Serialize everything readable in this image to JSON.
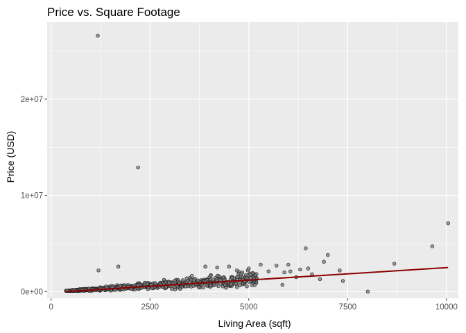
{
  "chart_data": {
    "type": "scatter",
    "title": "Price vs. Square Footage",
    "xlabel": "Living Area (sqft)",
    "ylabel": "Price (USD)",
    "xlim": [
      -100,
      10300
    ],
    "ylim": [
      -700000,
      28000000
    ],
    "x_ticks": [
      0,
      2500,
      5000,
      7500,
      10000
    ],
    "x_tick_labels": [
      "0",
      "2500",
      "5000",
      "7500",
      "10000"
    ],
    "y_ticks": [
      0,
      10000000,
      20000000
    ],
    "y_tick_labels": [
      "0e+00",
      "1e+07",
      "2e+07"
    ],
    "grid": true,
    "legend": "none",
    "colors": {
      "panel": "#ebebeb",
      "grid": "#ffffff",
      "point_fill": "#7f7f7f",
      "point_stroke": "#1a1a1a",
      "trend_line": "#8b0000"
    },
    "points": [
      [
        1180,
        26600000
      ],
      [
        2200,
        12900000
      ],
      [
        10040,
        7100000
      ],
      [
        9640,
        4700000
      ],
      [
        6440,
        4500000
      ],
      [
        7000,
        3800000
      ],
      [
        6900,
        3100000
      ],
      [
        8680,
        2900000
      ],
      [
        7300,
        2200000
      ],
      [
        7380,
        1100000
      ],
      [
        8010,
        0
      ],
      [
        1700,
        2600000
      ],
      [
        1200,
        2200000
      ],
      [
        5300,
        2800000
      ],
      [
        5700,
        2700000
      ],
      [
        6000,
        2800000
      ],
      [
        6500,
        2400000
      ],
      [
        6300,
        2300000
      ],
      [
        6050,
        2100000
      ],
      [
        5900,
        2000000
      ],
      [
        5500,
        2100000
      ],
      [
        4500,
        2600000
      ],
      [
        4200,
        2500000
      ],
      [
        6200,
        1500000
      ],
      [
        5850,
        700000
      ],
      [
        6600,
        1800000
      ],
      [
        6800,
        1300000
      ],
      [
        5000,
        2400000
      ],
      [
        3900,
        2600000
      ],
      [
        4700,
        2200000
      ]
    ],
    "cloud": {
      "x_range": [
        380,
        5200
      ],
      "count": 800,
      "trend_slope_per_sqft": 270,
      "spread": 0.45
    },
    "trend_line": {
      "x": [
        380,
        10040
      ],
      "y": [
        0,
        2500000
      ]
    }
  }
}
